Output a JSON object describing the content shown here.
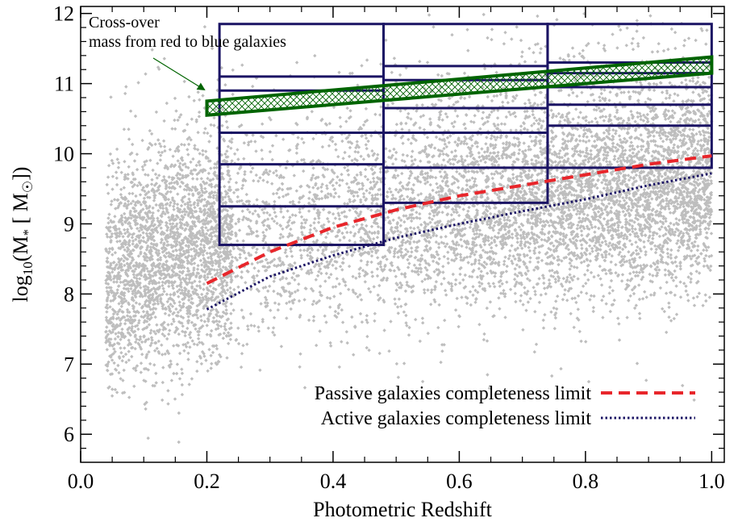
{
  "chart_data": {
    "type": "scatter",
    "xlabel": "Photometric Redshift",
    "ylabel_parts": {
      "main": "log",
      "sub": "10",
      "open": "(M",
      "star": "*",
      "unit": "[ M",
      "sun": "☉",
      "close": "])"
    },
    "xlim": [
      0.0,
      1.02
    ],
    "ylim": [
      5.6,
      12.1
    ],
    "x_ticks": [
      "0.0",
      "0.2",
      "0.4",
      "0.6",
      "0.8",
      "1.0"
    ],
    "x_tick_values": [
      0.0,
      0.2,
      0.4,
      0.6,
      0.8,
      1.0
    ],
    "y_ticks": [
      "6",
      "7",
      "8",
      "9",
      "10",
      "11",
      "12"
    ],
    "y_tick_values": [
      6,
      7,
      8,
      9,
      10,
      11,
      12
    ],
    "scatter_color": "#bebebe",
    "scatter_point_count": 9000,
    "annotation": {
      "lines": [
        "Cross-over",
        "mass from red  to blue galaxies"
      ],
      "arrow_from": [
        0.14,
        11.15
      ],
      "arrow_to": [
        0.205,
        10.85
      ],
      "color": "#006400"
    },
    "crossover_band": {
      "color": "#006400",
      "x": [
        0.2,
        1.0
      ],
      "lower": [
        10.55,
        11.15
      ],
      "upper": [
        10.75,
        11.38
      ]
    },
    "bins": {
      "color": "#1b1464",
      "columns": [
        {
          "x": [
            0.22,
            0.48
          ],
          "edges": [
            8.7,
            9.25,
            9.85,
            10.3,
            10.9,
            11.1,
            11.85
          ]
        },
        {
          "x": [
            0.48,
            0.74
          ],
          "edges": [
            9.3,
            9.8,
            10.3,
            10.65,
            11.05,
            11.25,
            11.85
          ]
        },
        {
          "x": [
            0.74,
            1.0
          ],
          "edges": [
            9.8,
            10.4,
            10.7,
            10.95,
            11.15,
            11.3,
            11.85
          ]
        }
      ]
    },
    "series": [
      {
        "name": "Passive galaxies completeness limit",
        "style": "dashed",
        "color": "#e8262b",
        "x": [
          0.2,
          0.3,
          0.4,
          0.5,
          0.6,
          0.7,
          0.8,
          0.9,
          1.0
        ],
        "y": [
          8.15,
          8.6,
          8.95,
          9.2,
          9.4,
          9.55,
          9.7,
          9.85,
          9.97
        ]
      },
      {
        "name": "Active galaxies completeness limit",
        "style": "dotted",
        "color": "#1b1464",
        "x": [
          0.2,
          0.3,
          0.4,
          0.5,
          0.6,
          0.7,
          0.8,
          0.9,
          1.0
        ],
        "y": [
          7.78,
          8.25,
          8.55,
          8.8,
          9.0,
          9.18,
          9.35,
          9.55,
          9.72
        ]
      }
    ],
    "legend": {
      "placement": "bottom-right"
    }
  }
}
